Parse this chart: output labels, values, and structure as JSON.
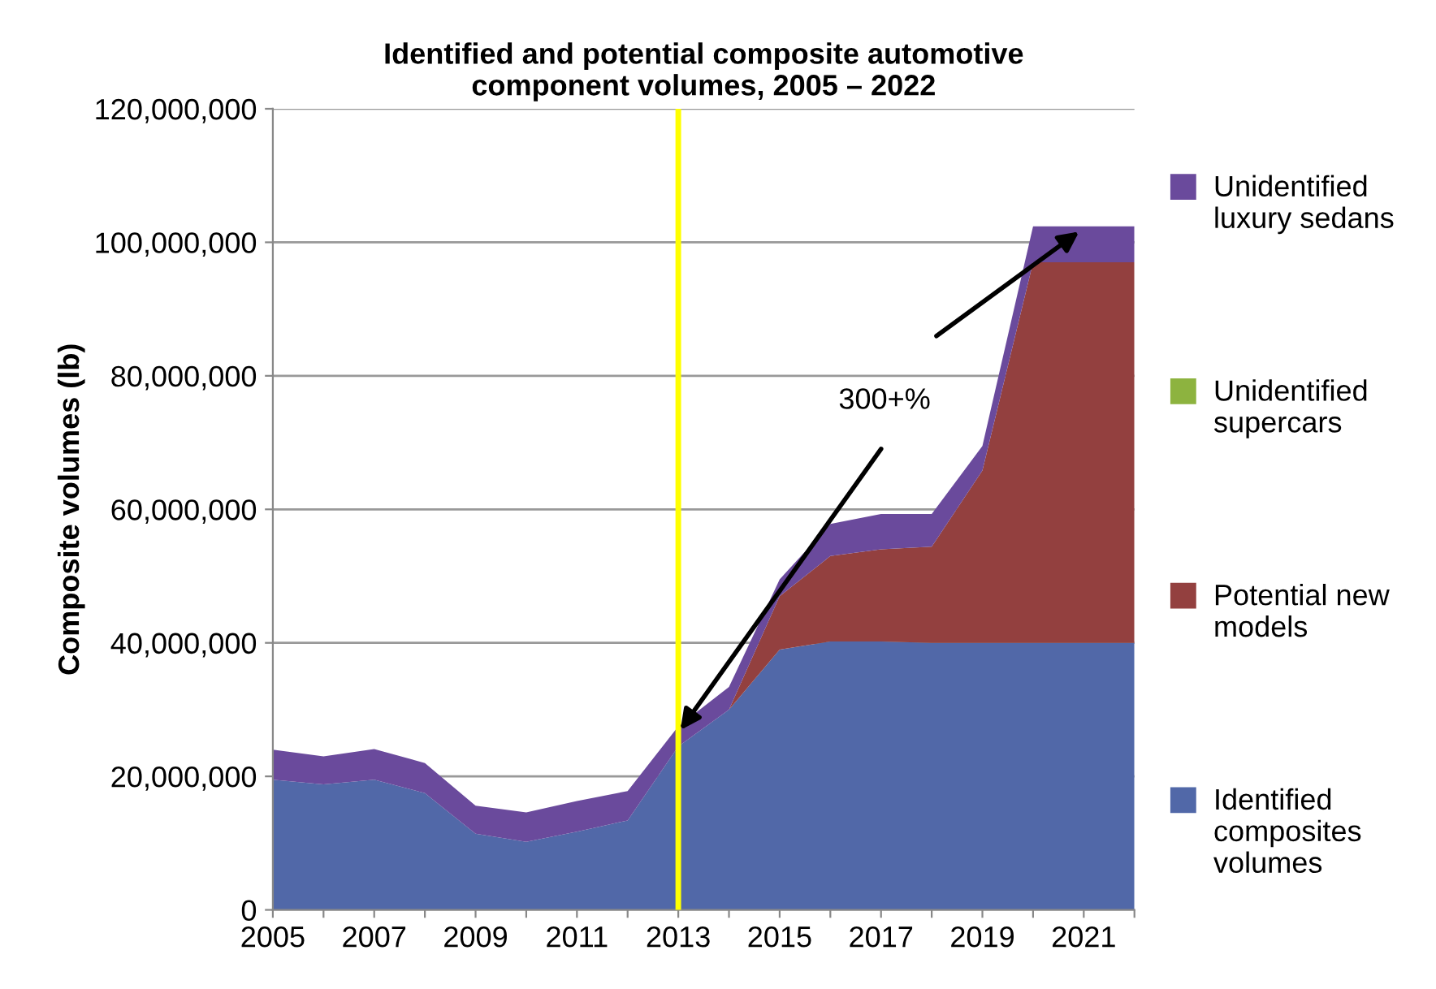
{
  "chart_data": {
    "type": "area",
    "stacked": true,
    "title": "Identified and potential composite automotive\ncomponent volumes, 2005 – 2022",
    "ylabel": "Composite volumes (lb)",
    "x": [
      2005,
      2006,
      2007,
      2008,
      2009,
      2010,
      2011,
      2012,
      2013,
      2014,
      2015,
      2016,
      2017,
      2018,
      2019,
      2020,
      2021,
      2022
    ],
    "series": [
      {
        "name": "Identified composites volumes",
        "color": "#5168a8",
        "values": [
          19500000,
          18800000,
          19500000,
          17500000,
          11400000,
          10200000,
          11700000,
          13400000,
          24500000,
          30000000,
          39000000,
          40200000,
          40200000,
          40000000,
          40000000,
          40000000,
          40000000,
          40000000
        ]
      },
      {
        "name": "Potential new models",
        "color": "#93403f",
        "values": [
          0,
          0,
          0,
          0,
          0,
          0,
          0,
          0,
          0,
          0,
          8000000,
          12800000,
          13800000,
          14400000,
          25800000,
          57000000,
          57000000,
          57000000
        ]
      },
      {
        "name": "Unidentified supercars",
        "color": "#8db33f",
        "values": [
          null,
          null,
          null,
          null,
          null,
          null,
          null,
          null,
          null,
          null,
          null,
          null,
          null,
          null,
          null,
          null,
          null,
          null
        ]
      },
      {
        "name": "Unidentified luxury sedans",
        "color": "#6a4a9c",
        "values": [
          4500000,
          4200000,
          4600000,
          4500000,
          4200000,
          4400000,
          4600000,
          4400000,
          3000000,
          3400000,
          2500000,
          4800000,
          5300000,
          4900000,
          3700000,
          5400000,
          5400000,
          5400000
        ]
      }
    ],
    "xlim": [
      2005,
      2022
    ],
    "xticks": [
      2005,
      {
        "value": 2006,
        "label": null
      },
      2007,
      {
        "value": 2008,
        "label": null
      },
      2009,
      {
        "value": 2010,
        "label": null
      },
      2011,
      {
        "value": 2012,
        "label": null
      },
      2013,
      {
        "value": 2014,
        "label": null
      },
      2015,
      {
        "value": 2016,
        "label": null
      },
      2017,
      {
        "value": 2018,
        "label": null
      },
      2019,
      {
        "value": 2020,
        "label": null
      },
      2021,
      {
        "value": 2022,
        "label": null
      }
    ],
    "ylim": [
      0,
      120000000
    ],
    "yticks": [
      {
        "value": 0,
        "label": "0"
      },
      {
        "value": 20000000,
        "label": "20,000,000"
      },
      {
        "value": 40000000,
        "label": "40,000,000"
      },
      {
        "value": 60000000,
        "label": "60,000,000"
      },
      {
        "value": 80000000,
        "label": "80,000,000"
      },
      {
        "value": 100000000,
        "label": "100,000,000"
      },
      {
        "value": 120000000,
        "label": "120,000,000"
      }
    ],
    "ref_lines": [
      {
        "axis": "x",
        "value": 2013,
        "color": "#ffff00"
      }
    ],
    "annotations": [
      "300+%"
    ],
    "grid": "y",
    "legend": "right"
  }
}
